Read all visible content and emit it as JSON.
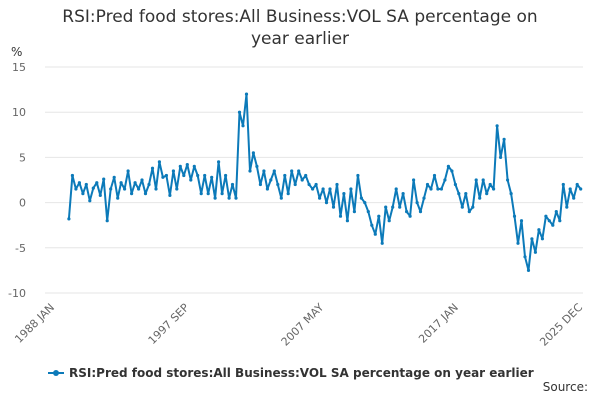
{
  "title_line1": "RSI:Pred food stores:All Business:VOL SA percentage on",
  "title_line2": "year earlier",
  "source_label": "Source:",
  "colors": {
    "series": "#0c7ab9",
    "grid": "#e6e6e6",
    "axis_text": "#666666"
  },
  "chart_data": {
    "type": "line",
    "title": "RSI:Pred food stores:All Business:VOL SA percentage on year earlier",
    "ylabel": "%",
    "xlabel": "",
    "ylim": [
      -10,
      15
    ],
    "yticks": [
      -10,
      -5,
      0,
      5,
      10,
      15
    ],
    "xlim": [
      "1988 JAN",
      "2025 DEC"
    ],
    "xticks": [
      "1988 JAN",
      "1997 SEP",
      "2007 MAY",
      "2017 JAN",
      "2025 DEC"
    ],
    "grid": "horizontal",
    "legend": "bottom",
    "series": [
      {
        "name": "RSI:Pred food stores:All Business:VOL SA percentage on year earlier",
        "x": [
          "1989 JAN",
          "1989 APR",
          "1989 JUL",
          "1989 OCT",
          "1990 JAN",
          "1990 APR",
          "1990 JUL",
          "1990 OCT",
          "1991 JAN",
          "1991 APR",
          "1991 JUL",
          "1991 OCT",
          "1992 JAN",
          "1992 APR",
          "1992 JUL",
          "1992 OCT",
          "1993 JAN",
          "1993 APR",
          "1993 JUL",
          "1993 OCT",
          "1994 JAN",
          "1994 APR",
          "1994 JUL",
          "1994 OCT",
          "1995 JAN",
          "1995 APR",
          "1995 JUL",
          "1995 OCT",
          "1996 JAN",
          "1996 APR",
          "1996 JUL",
          "1996 OCT",
          "1997 JAN",
          "1997 APR",
          "1997 JUL",
          "1997 OCT",
          "1998 JAN",
          "1998 APR",
          "1998 JUL",
          "1998 OCT",
          "1999 JAN",
          "1999 APR",
          "1999 JUL",
          "1999 OCT",
          "2000 JAN",
          "2000 APR",
          "2000 JUL",
          "2000 OCT",
          "2001 JAN",
          "2001 APR",
          "2001 JUL",
          "2001 OCT",
          "2002 JAN",
          "2002 APR",
          "2002 JUL",
          "2002 OCT",
          "2003 JAN",
          "2003 APR",
          "2003 JUL",
          "2003 OCT",
          "2004 JAN",
          "2004 APR",
          "2004 JUL",
          "2004 OCT",
          "2005 JAN",
          "2005 APR",
          "2005 JUL",
          "2005 OCT",
          "2006 JAN",
          "2006 APR",
          "2006 JUL",
          "2006 OCT",
          "2007 JAN",
          "2007 APR",
          "2007 JUL",
          "2007 OCT",
          "2008 JAN",
          "2008 APR",
          "2008 JUL",
          "2008 OCT",
          "2009 JAN",
          "2009 APR",
          "2009 JUL",
          "2009 OCT",
          "2010 JAN",
          "2010 APR",
          "2010 JUL",
          "2010 OCT",
          "2011 JAN",
          "2011 APR",
          "2011 JUL",
          "2011 OCT",
          "2012 JAN",
          "2012 APR",
          "2012 JUL",
          "2012 OCT",
          "2013 JAN",
          "2013 APR",
          "2013 JUL",
          "2013 OCT",
          "2014 JAN",
          "2014 APR",
          "2014 JUL",
          "2014 OCT",
          "2015 JAN",
          "2015 APR",
          "2015 JUL",
          "2015 OCT",
          "2016 JAN",
          "2016 APR",
          "2016 JUL",
          "2016 OCT",
          "2017 JAN",
          "2017 APR",
          "2017 JUL",
          "2017 OCT",
          "2018 JAN",
          "2018 APR",
          "2018 JUL",
          "2018 OCT",
          "2019 JAN",
          "2019 APR",
          "2019 JUL",
          "2019 OCT",
          "2020 JAN",
          "2020 APR",
          "2020 JUL",
          "2020 OCT",
          "2021 JAN",
          "2021 APR",
          "2021 JUL",
          "2021 OCT",
          "2022 JAN",
          "2022 APR",
          "2022 JUL",
          "2022 OCT",
          "2023 JAN",
          "2023 APR",
          "2023 JUL",
          "2023 OCT",
          "2024 JAN",
          "2024 APR",
          "2024 JUL",
          "2024 OCT",
          "2025 JAN",
          "2025 APR",
          "2025 JUL",
          "2025 OCT"
        ],
        "values": [
          -1.8,
          3.0,
          1.5,
          2.2,
          1.0,
          2.0,
          0.2,
          1.6,
          2.2,
          0.8,
          2.6,
          -2.0,
          1.5,
          2.8,
          0.5,
          2.2,
          1.5,
          3.5,
          1.0,
          2.2,
          1.5,
          2.5,
          1.0,
          2.0,
          3.8,
          1.5,
          4.5,
          2.8,
          3.0,
          0.8,
          3.5,
          1.5,
          4.0,
          3.0,
          4.2,
          2.5,
          4.0,
          3.0,
          1.0,
          3.0,
          1.0,
          2.8,
          0.5,
          4.5,
          1.0,
          3.0,
          0.5,
          2.0,
          0.5,
          10.0,
          8.5,
          12.0,
          3.5,
          5.5,
          4.0,
          2.0,
          3.5,
          1.5,
          2.5,
          3.5,
          2.0,
          0.5,
          3.0,
          1.0,
          3.5,
          2.0,
          3.5,
          2.5,
          3.0,
          2.0,
          1.5,
          2.0,
          0.5,
          1.5,
          0.0,
          1.5,
          -0.5,
          2.0,
          -1.5,
          1.0,
          -2.0,
          1.5,
          -1.0,
          3.0,
          0.5,
          0.0,
          -1.0,
          -2.5,
          -3.5,
          -1.5,
          -4.5,
          -0.5,
          -2.0,
          -0.5,
          1.5,
          -0.5,
          1.0,
          -1.0,
          -1.5,
          2.5,
          0.0,
          -1.0,
          0.5,
          2.0,
          1.5,
          3.0,
          1.5,
          1.5,
          2.5,
          4.0,
          3.5,
          2.0,
          1.0,
          -0.5,
          1.0,
          -1.0,
          -0.5,
          2.5,
          0.5,
          2.5,
          1.0,
          2.0,
          1.5,
          8.5,
          5.0,
          7.0,
          2.5,
          1.0,
          -1.5,
          -4.5,
          -2.0,
          -6.0,
          -7.5,
          -4.0,
          -5.5,
          -3.0,
          -4.0,
          -1.5,
          -2.0,
          -2.5,
          -1.0,
          -2.0,
          2.0,
          -0.5,
          1.5,
          0.5,
          2.0,
          1.5
        ]
      }
    ]
  }
}
